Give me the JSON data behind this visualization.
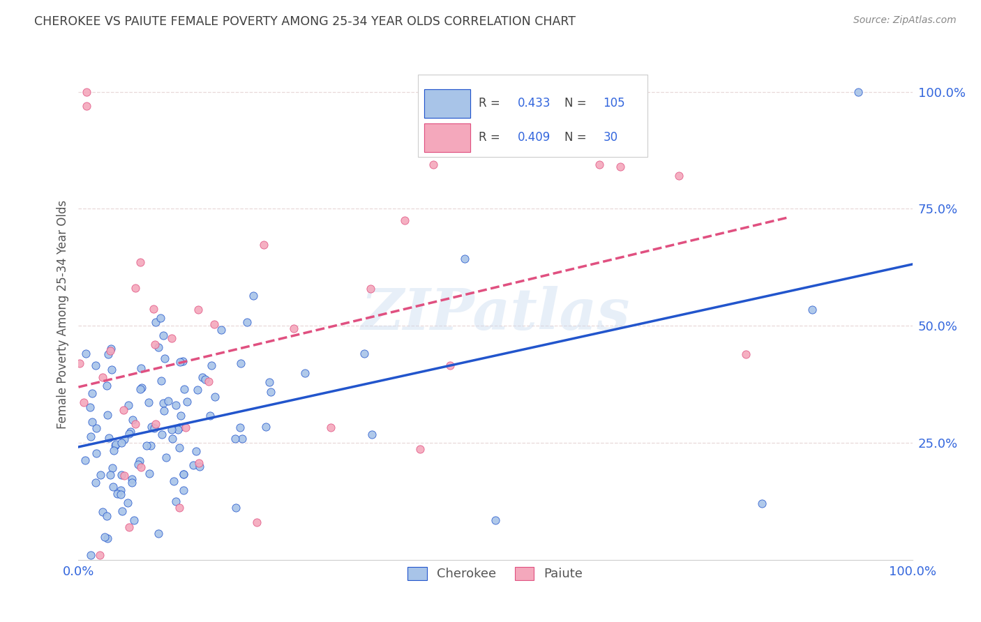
{
  "title": "CHEROKEE VS PAIUTE FEMALE POVERTY AMONG 25-34 YEAR OLDS CORRELATION CHART",
  "source": "Source: ZipAtlas.com",
  "ylabel": "Female Poverty Among 25-34 Year Olds",
  "watermark": "ZIPatlas",
  "legend_label1": "Cherokee",
  "legend_label2": "Paiute",
  "cherokee_R": "0.433",
  "cherokee_N": "105",
  "paiute_R": "0.409",
  "paiute_N": "30",
  "cherokee_color": "#a8c4e8",
  "paiute_color": "#f4a8bc",
  "cherokee_line_color": "#2255cc",
  "paiute_line_color": "#e05080",
  "background_color": "#ffffff",
  "grid_color": "#e8d8d8",
  "title_color": "#404040",
  "stat_color": "#3366dd",
  "tick_color": "#3366dd",
  "cherokee_line_intercept": 0.15,
  "cherokee_line_slope": 0.32,
  "paiute_line_intercept": 0.36,
  "paiute_line_slope": 0.46
}
